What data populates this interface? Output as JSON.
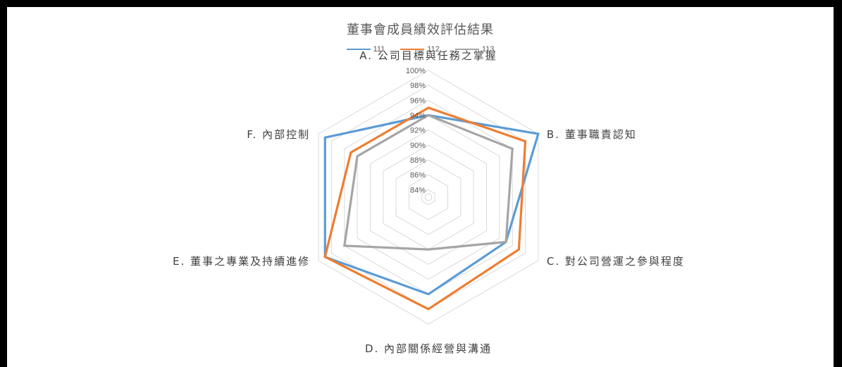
{
  "chart_data": {
    "type": "radar",
    "title": "董事會成員績效評估結果",
    "axes": [
      "A. 公司目標與任務之掌握",
      "B. 董事職責認知",
      "C. 對公司營運之參與程度",
      "D. 內部關係經營與溝通",
      "E. 董事之專業及持續進修",
      "F. 內部控制"
    ],
    "tick_labels": [
      "84%",
      "86%",
      "88%",
      "90%",
      "92%",
      "94%",
      "96%",
      "98%",
      "100%"
    ],
    "rmin": 0.83,
    "rmax": 1.0,
    "series": [
      {
        "name": "111",
        "color": "#5B9BD5",
        "values": [
          0.94,
          1.0,
          0.95,
          0.96,
          0.99,
          0.99
        ]
      },
      {
        "name": "112",
        "color": "#ED7D31",
        "values": [
          0.95,
          0.98,
          0.97,
          0.98,
          0.99,
          0.95
        ]
      },
      {
        "name": "113",
        "color": "#A5A5A5",
        "values": [
          0.94,
          0.96,
          0.95,
          0.9,
          0.96,
          0.94
        ]
      }
    ],
    "legend_position": "top",
    "grid": true
  }
}
